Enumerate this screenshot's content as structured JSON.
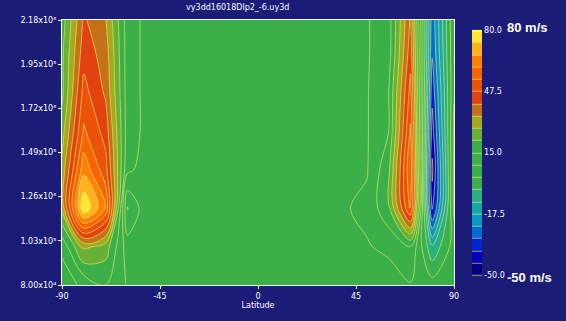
{
  "chart_data": {
    "type": "contour",
    "title": "vy3dd16018Dlp2_-6.uy3d",
    "x_label": "Latitude",
    "x": [
      -90,
      -80,
      -70,
      -60,
      -50,
      -40,
      -30,
      -20,
      -10,
      0,
      10,
      20,
      30,
      40,
      50,
      60,
      70,
      80,
      90
    ],
    "y": [
      80000,
      100000,
      120000,
      140000,
      160000,
      180000,
      200000,
      218000
    ],
    "z": [
      [
        5,
        10,
        15,
        8,
        5,
        3,
        4,
        5,
        3,
        2,
        4,
        5,
        3,
        4,
        6,
        5,
        8,
        5,
        3
      ],
      [
        10,
        30,
        25,
        5,
        3,
        4,
        5,
        4,
        3,
        4,
        5,
        4,
        3,
        5,
        8,
        10,
        15,
        -10,
        5
      ],
      [
        30,
        80,
        60,
        -5,
        8,
        6,
        5,
        5,
        4,
        5,
        5,
        6,
        5,
        8,
        10,
        20,
        55,
        -40,
        10
      ],
      [
        30,
        65,
        50,
        10,
        5,
        5,
        5,
        4,
        5,
        5,
        4,
        5,
        5,
        6,
        8,
        20,
        60,
        -45,
        10
      ],
      [
        25,
        55,
        45,
        12,
        6,
        5,
        5,
        5,
        5,
        5,
        5,
        5,
        5,
        6,
        8,
        15,
        55,
        -40,
        10
      ],
      [
        20,
        50,
        40,
        12,
        6,
        5,
        5,
        5,
        5,
        5,
        5,
        5,
        5,
        6,
        8,
        15,
        50,
        -35,
        8
      ],
      [
        20,
        45,
        38,
        12,
        6,
        5,
        5,
        5,
        5,
        5,
        5,
        5,
        5,
        6,
        8,
        12,
        45,
        -30,
        8
      ],
      [
        18,
        42,
        35,
        12,
        6,
        5,
        5,
        5,
        5,
        5,
        5,
        5,
        5,
        6,
        8,
        12,
        42,
        -28,
        8
      ]
    ],
    "xlim": [
      -90,
      90
    ],
    "xticks": [
      -90,
      -45,
      0,
      45,
      90
    ],
    "ylim": [
      80000,
      218000
    ],
    "yticks": [
      {
        "value": 80000,
        "label": "8.00x10⁴"
      },
      {
        "value": 103000,
        "label": "1.03x10⁵"
      },
      {
        "value": 126000,
        "label": "1.26x10⁵"
      },
      {
        "value": 149000,
        "label": "1.49x10⁵"
      },
      {
        "value": 172000,
        "label": "1.72x10⁵"
      },
      {
        "value": 195000,
        "label": "1.95x10⁵"
      },
      {
        "value": 218000,
        "label": "2.18x10⁵"
      }
    ],
    "colorbar": {
      "range": [
        -50,
        80
      ],
      "ticks": [
        {
          "value": -50,
          "label": "-50.0"
        },
        {
          "value": -17.5,
          "label": "-17.5"
        },
        {
          "value": 15,
          "label": "15.0"
        },
        {
          "value": 47.5,
          "label": "47.5"
        },
        {
          "value": 80,
          "label": "80.0"
        }
      ]
    },
    "annotations": [
      "80 m/s",
      "-50 m/s"
    ]
  }
}
